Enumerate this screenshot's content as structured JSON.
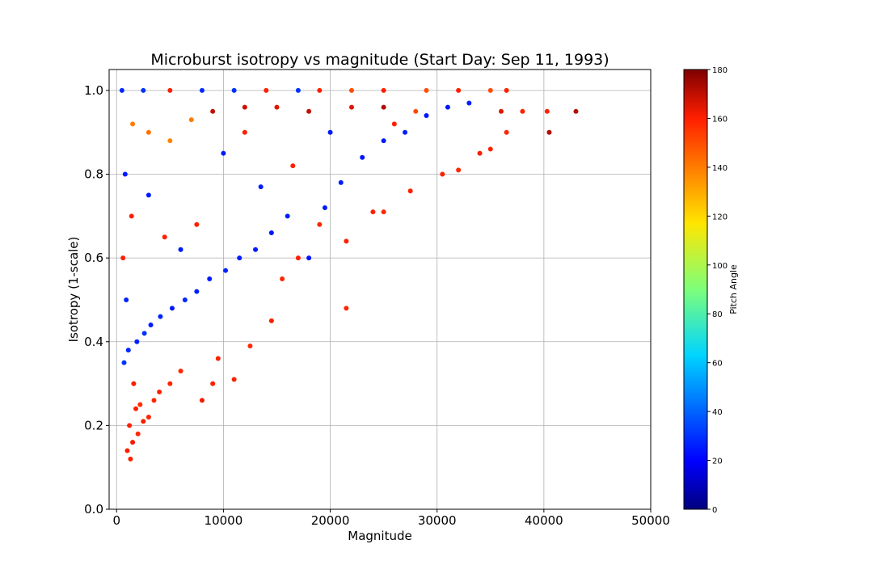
{
  "chart_data": {
    "type": "scatter",
    "title": "Microburst isotropy vs magnitude (Start Day: Sep 11, 1993)",
    "xlabel": "Magnitude",
    "ylabel": "Isotropy (1-scale)",
    "xlim": [
      -700,
      50000
    ],
    "ylim": [
      0,
      1.05
    ],
    "xticks": [
      0,
      10000,
      20000,
      30000,
      40000,
      50000
    ],
    "yticks": [
      0.0,
      0.2,
      0.4,
      0.6,
      0.8,
      1.0
    ],
    "ytick_labels": [
      "0.0",
      "0.2",
      "0.4",
      "0.6",
      "0.8",
      "1.0"
    ],
    "grid": true,
    "colorbar": {
      "label": "Pitch Angle",
      "range": [
        0,
        180
      ],
      "ticks": [
        0,
        20,
        40,
        60,
        80,
        100,
        120,
        140,
        160,
        180
      ],
      "colormap": "jet"
    },
    "colors": {
      "low_pitch": "#0a14ff",
      "high_pitch": "#ff2a00",
      "mid_high_pitch": "#ff7a0a",
      "max_pitch": "#b40000"
    },
    "points": [
      {
        "x": 1000,
        "y": 0.14,
        "c": 160
      },
      {
        "x": 1500,
        "y": 0.16,
        "c": 162
      },
      {
        "x": 2000,
        "y": 0.18,
        "c": 158
      },
      {
        "x": 1200,
        "y": 0.2,
        "c": 160
      },
      {
        "x": 2500,
        "y": 0.21,
        "c": 161
      },
      {
        "x": 3000,
        "y": 0.22,
        "c": 159
      },
      {
        "x": 1800,
        "y": 0.24,
        "c": 160
      },
      {
        "x": 2200,
        "y": 0.25,
        "c": 157
      },
      {
        "x": 3500,
        "y": 0.26,
        "c": 158
      },
      {
        "x": 4000,
        "y": 0.28,
        "c": 160
      },
      {
        "x": 1600,
        "y": 0.3,
        "c": 161
      },
      {
        "x": 5000,
        "y": 0.3,
        "c": 159
      },
      {
        "x": 6000,
        "y": 0.33,
        "c": 158
      },
      {
        "x": 8000,
        "y": 0.26,
        "c": 162
      },
      {
        "x": 9000,
        "y": 0.3,
        "c": 160
      },
      {
        "x": 700,
        "y": 0.35,
        "c": 30
      },
      {
        "x": 1100,
        "y": 0.38,
        "c": 28
      },
      {
        "x": 1900,
        "y": 0.4,
        "c": 26
      },
      {
        "x": 2600,
        "y": 0.42,
        "c": 30
      },
      {
        "x": 3200,
        "y": 0.44,
        "c": 25
      },
      {
        "x": 4100,
        "y": 0.46,
        "c": 27
      },
      {
        "x": 5200,
        "y": 0.48,
        "c": 24
      },
      {
        "x": 6400,
        "y": 0.5,
        "c": 28
      },
      {
        "x": 7500,
        "y": 0.52,
        "c": 26
      },
      {
        "x": 8700,
        "y": 0.55,
        "c": 25
      },
      {
        "x": 10200,
        "y": 0.57,
        "c": 27
      },
      {
        "x": 11500,
        "y": 0.6,
        "c": 26
      },
      {
        "x": 13000,
        "y": 0.62,
        "c": 25
      },
      {
        "x": 14500,
        "y": 0.66,
        "c": 24
      },
      {
        "x": 16000,
        "y": 0.7,
        "c": 26
      },
      {
        "x": 18000,
        "y": 0.6,
        "c": 24
      },
      {
        "x": 19500,
        "y": 0.72,
        "c": 25
      },
      {
        "x": 21000,
        "y": 0.78,
        "c": 26
      },
      {
        "x": 23000,
        "y": 0.84,
        "c": 24
      },
      {
        "x": 25000,
        "y": 0.88,
        "c": 25
      },
      {
        "x": 27000,
        "y": 0.9,
        "c": 26
      },
      {
        "x": 29000,
        "y": 0.94,
        "c": 24
      },
      {
        "x": 31000,
        "y": 0.96,
        "c": 25
      },
      {
        "x": 33000,
        "y": 0.97,
        "c": 26
      },
      {
        "x": 9500,
        "y": 0.36,
        "c": 160
      },
      {
        "x": 11000,
        "y": 0.31,
        "c": 160
      },
      {
        "x": 12500,
        "y": 0.39,
        "c": 158
      },
      {
        "x": 14500,
        "y": 0.45,
        "c": 161
      },
      {
        "x": 15500,
        "y": 0.55,
        "c": 159
      },
      {
        "x": 17000,
        "y": 0.6,
        "c": 160
      },
      {
        "x": 19000,
        "y": 0.68,
        "c": 158
      },
      {
        "x": 21500,
        "y": 0.64,
        "c": 160
      },
      {
        "x": 21500,
        "y": 0.48,
        "c": 159
      },
      {
        "x": 24000,
        "y": 0.71,
        "c": 160
      },
      {
        "x": 25000,
        "y": 0.71,
        "c": 158
      },
      {
        "x": 27500,
        "y": 0.76,
        "c": 160
      },
      {
        "x": 30500,
        "y": 0.8,
        "c": 160
      },
      {
        "x": 32000,
        "y": 0.81,
        "c": 158
      },
      {
        "x": 34000,
        "y": 0.85,
        "c": 161
      },
      {
        "x": 35000,
        "y": 0.86,
        "c": 160
      },
      {
        "x": 36500,
        "y": 0.9,
        "c": 158
      },
      {
        "x": 38000,
        "y": 0.95,
        "c": 160
      },
      {
        "x": 40500,
        "y": 0.9,
        "c": 172
      },
      {
        "x": 40300,
        "y": 0.95,
        "c": 160
      },
      {
        "x": 43000,
        "y": 0.95,
        "c": 172
      },
      {
        "x": 1500,
        "y": 0.92,
        "c": 140
      },
      {
        "x": 3000,
        "y": 0.9,
        "c": 142
      },
      {
        "x": 5000,
        "y": 0.88,
        "c": 138
      },
      {
        "x": 7000,
        "y": 0.93,
        "c": 140
      },
      {
        "x": 9000,
        "y": 0.95,
        "c": 170
      },
      {
        "x": 12000,
        "y": 0.96,
        "c": 168
      },
      {
        "x": 15000,
        "y": 0.96,
        "c": 165
      },
      {
        "x": 18000,
        "y": 0.95,
        "c": 170
      },
      {
        "x": 22000,
        "y": 0.96,
        "c": 165
      },
      {
        "x": 25000,
        "y": 0.96,
        "c": 172
      },
      {
        "x": 28000,
        "y": 0.95,
        "c": 150
      },
      {
        "x": 36000,
        "y": 0.95,
        "c": 165
      },
      {
        "x": 500,
        "y": 1.0,
        "c": 28
      },
      {
        "x": 2500,
        "y": 1.0,
        "c": 30
      },
      {
        "x": 5000,
        "y": 1.0,
        "c": 160
      },
      {
        "x": 8000,
        "y": 1.0,
        "c": 28
      },
      {
        "x": 11000,
        "y": 1.0,
        "c": 30
      },
      {
        "x": 14000,
        "y": 1.0,
        "c": 160
      },
      {
        "x": 17000,
        "y": 1.0,
        "c": 30
      },
      {
        "x": 19000,
        "y": 1.0,
        "c": 160
      },
      {
        "x": 22000,
        "y": 1.0,
        "c": 150
      },
      {
        "x": 25000,
        "y": 1.0,
        "c": 160
      },
      {
        "x": 29000,
        "y": 1.0,
        "c": 150
      },
      {
        "x": 32000,
        "y": 1.0,
        "c": 160
      },
      {
        "x": 35000,
        "y": 1.0,
        "c": 150
      },
      {
        "x": 36500,
        "y": 1.0,
        "c": 160
      },
      {
        "x": 1300,
        "y": 0.12,
        "c": 160
      },
      {
        "x": 800,
        "y": 0.8,
        "c": 25
      },
      {
        "x": 600,
        "y": 0.6,
        "c": 160
      },
      {
        "x": 900,
        "y": 0.5,
        "c": 27
      },
      {
        "x": 1400,
        "y": 0.7,
        "c": 160
      },
      {
        "x": 3000,
        "y": 0.75,
        "c": 25
      },
      {
        "x": 4500,
        "y": 0.65,
        "c": 160
      },
      {
        "x": 6000,
        "y": 0.62,
        "c": 25
      },
      {
        "x": 7500,
        "y": 0.68,
        "c": 160
      },
      {
        "x": 10000,
        "y": 0.85,
        "c": 25
      },
      {
        "x": 12000,
        "y": 0.9,
        "c": 160
      },
      {
        "x": 13500,
        "y": 0.77,
        "c": 26
      },
      {
        "x": 16500,
        "y": 0.82,
        "c": 160
      },
      {
        "x": 20000,
        "y": 0.9,
        "c": 25
      },
      {
        "x": 26000,
        "y": 0.92,
        "c": 160
      }
    ]
  }
}
